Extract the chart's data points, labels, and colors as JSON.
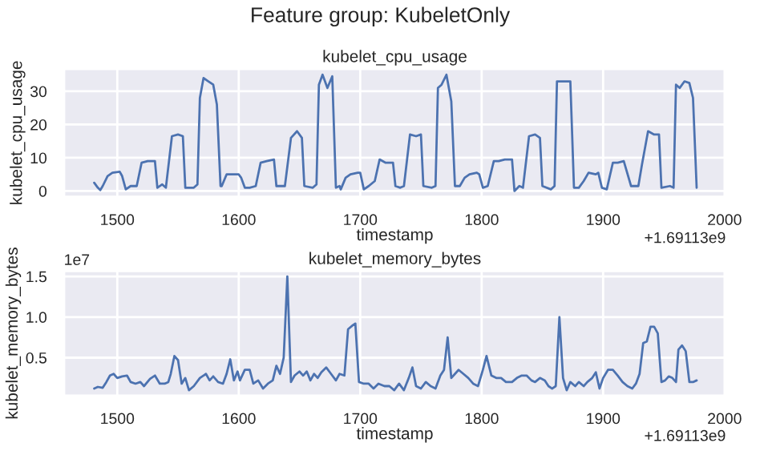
{
  "chart_data": [
    {
      "type": "line",
      "title": "Feature group: KubeletOnly",
      "subtitle": "kubelet_cpu_usage",
      "xlabel": "timestamp",
      "ylabel": "kubelet_cpu_usage",
      "annotations": [
        "+1.69113e9"
      ],
      "grid": true,
      "line_style": "solid",
      "marker": "none",
      "xlim": [
        1456,
        2001
      ],
      "xticks": [
        1500,
        1600,
        1700,
        1800,
        1900,
        2000
      ],
      "ylim": [
        -1.8,
        36.8
      ],
      "yticks": [
        0,
        10,
        20,
        30
      ],
      "series": [
        {
          "color": "#4c72b0",
          "x": [
            1481,
            1484,
            1486,
            1488,
            1492,
            1496,
            1502,
            1504,
            1507,
            1511,
            1516,
            1520,
            1525,
            1531,
            1533,
            1537,
            1540,
            1545,
            1550,
            1554,
            1556,
            1563,
            1566,
            1568,
            1571,
            1575,
            1579,
            1582,
            1585,
            1586,
            1590,
            1594,
            1600,
            1602,
            1605,
            1609,
            1614,
            1618,
            1623,
            1629,
            1631,
            1635,
            1638,
            1643,
            1648,
            1652,
            1654,
            1661,
            1664,
            1666,
            1669,
            1673,
            1677,
            1680,
            1683,
            1684,
            1688,
            1692,
            1698,
            1700,
            1703,
            1707,
            1712,
            1716,
            1721,
            1727,
            1729,
            1733,
            1736,
            1741,
            1746,
            1750,
            1752,
            1759,
            1762,
            1764,
            1767,
            1771,
            1775,
            1778,
            1781,
            1782,
            1786,
            1790,
            1796,
            1798,
            1801,
            1805,
            1810,
            1814,
            1819,
            1825,
            1827,
            1831,
            1834,
            1839,
            1844,
            1848,
            1850,
            1857,
            1860,
            1862,
            1865,
            1869,
            1873,
            1876,
            1879,
            1880,
            1884,
            1888,
            1894,
            1896,
            1899,
            1903,
            1908,
            1912,
            1917,
            1923,
            1925,
            1929,
            1932,
            1937,
            1942,
            1946,
            1948,
            1955,
            1958,
            1960,
            1963,
            1967,
            1971,
            1974,
            1977
          ],
          "values": [
            2.5,
            1,
            0.3,
            1.5,
            4.5,
            5.5,
            5.8,
            4.5,
            0.5,
            1.5,
            1.5,
            8.5,
            9,
            9,
            1,
            2,
            1,
            16.5,
            17,
            16.5,
            1,
            1,
            2,
            28,
            34,
            33,
            32,
            26,
            1.5,
            1.5,
            5,
            5,
            5,
            4,
            1,
            1,
            1.5,
            8.5,
            9,
            9.5,
            1.5,
            1.5,
            1.5,
            16,
            18,
            16,
            1.5,
            1,
            2,
            32,
            35,
            31,
            34.5,
            1,
            1.5,
            0.5,
            4,
            5,
            5.5,
            5.5,
            0.5,
            1.5,
            3,
            9.5,
            8.5,
            8.5,
            1.5,
            1,
            1.5,
            17,
            16.5,
            17,
            1.5,
            1,
            1.5,
            31,
            32,
            35,
            27,
            1.5,
            1.5,
            1.5,
            4,
            5,
            5.5,
            5,
            1,
            1.5,
            9,
            9,
            9.5,
            9.5,
            0,
            1.5,
            1,
            16.5,
            17,
            16,
            1.5,
            0.5,
            1.5,
            33,
            33,
            33,
            33,
            1,
            1,
            1,
            3,
            5.5,
            5,
            5.5,
            1,
            0.5,
            8.5,
            8.5,
            9,
            1.5,
            1.5,
            1.5,
            8,
            18,
            17,
            17,
            1,
            1.5,
            1,
            32,
            31,
            33,
            32.5,
            28,
            1
          ]
        }
      ]
    },
    {
      "type": "line",
      "title": "kubelet_memory_bytes",
      "xlabel": "timestamp",
      "ylabel": "kubelet_memory_bytes",
      "annotations": [
        "1e7",
        "+1.69113e9"
      ],
      "grid": true,
      "line_style": "solid",
      "marker": "none",
      "xlim": [
        1456,
        2001
      ],
      "xticks": [
        1500,
        1600,
        1700,
        1800,
        1900,
        2000
      ],
      "ylim": [
        0.03,
        1.57
      ],
      "yticks": [
        0.5,
        {
          "value": 1.0,
          "label": "1.0"
        },
        1.5
      ],
      "series": [
        {
          "color": "#4c72b0",
          "x": [
            1481,
            1484,
            1488,
            1491,
            1494,
            1497,
            1500,
            1504,
            1508,
            1511,
            1515,
            1519,
            1522,
            1527,
            1531,
            1535,
            1539,
            1542,
            1544,
            1547,
            1550,
            1553,
            1556,
            1559,
            1563,
            1568,
            1573,
            1576,
            1579,
            1583,
            1587,
            1590,
            1593,
            1596,
            1599,
            1601,
            1605,
            1609,
            1612,
            1616,
            1620,
            1624,
            1628,
            1631,
            1634,
            1637,
            1640,
            1643,
            1646,
            1650,
            1653,
            1656,
            1659,
            1662,
            1665,
            1668,
            1672,
            1676,
            1680,
            1683,
            1687,
            1690,
            1694,
            1696,
            1699,
            1703,
            1707,
            1711,
            1715,
            1720,
            1724,
            1728,
            1732,
            1736,
            1740,
            1743,
            1746,
            1750,
            1754,
            1758,
            1762,
            1766,
            1769,
            1772,
            1775,
            1778,
            1781,
            1785,
            1789,
            1793,
            1797,
            1801,
            1804,
            1808,
            1812,
            1816,
            1820,
            1825,
            1829,
            1833,
            1837,
            1841,
            1844,
            1848,
            1852,
            1855,
            1858,
            1861,
            1864,
            1867,
            1870,
            1873,
            1877,
            1880,
            1884,
            1887,
            1891,
            1894,
            1897,
            1900,
            1904,
            1908,
            1912,
            1916,
            1920,
            1924,
            1927,
            1930,
            1933,
            1936,
            1939,
            1942,
            1945,
            1948,
            1951,
            1954,
            1957,
            1960,
            1962,
            1965,
            1968,
            1971,
            1974,
            1977
          ],
          "values": [
            0.12,
            0.14,
            0.13,
            0.2,
            0.28,
            0.3,
            0.25,
            0.27,
            0.28,
            0.2,
            0.18,
            0.2,
            0.15,
            0.24,
            0.28,
            0.18,
            0.18,
            0.2,
            0.3,
            0.52,
            0.47,
            0.18,
            0.25,
            0.1,
            0.15,
            0.25,
            0.3,
            0.22,
            0.27,
            0.2,
            0.18,
            0.3,
            0.48,
            0.22,
            0.33,
            0.22,
            0.35,
            0.35,
            0.18,
            0.22,
            0.12,
            0.18,
            0.22,
            0.4,
            0.3,
            0.5,
            1.5,
            0.2,
            0.28,
            0.33,
            0.28,
            0.33,
            0.22,
            0.3,
            0.25,
            0.32,
            0.38,
            0.3,
            0.22,
            0.3,
            0.28,
            0.85,
            0.9,
            0.92,
            0.2,
            0.18,
            0.18,
            0.12,
            0.18,
            0.15,
            0.15,
            0.1,
            0.18,
            0.1,
            0.25,
            0.38,
            0.15,
            0.12,
            0.2,
            0.15,
            0.12,
            0.28,
            0.35,
            0.75,
            0.25,
            0.3,
            0.35,
            0.3,
            0.25,
            0.18,
            0.15,
            0.35,
            0.52,
            0.28,
            0.25,
            0.25,
            0.2,
            0.2,
            0.25,
            0.28,
            0.28,
            0.22,
            0.2,
            0.25,
            0.22,
            0.15,
            0.12,
            0.15,
            1.0,
            0.25,
            0.1,
            0.2,
            0.15,
            0.2,
            0.15,
            0.2,
            0.25,
            0.32,
            0.12,
            0.25,
            0.35,
            0.35,
            0.28,
            0.2,
            0.15,
            0.12,
            0.18,
            0.3,
            0.68,
            0.7,
            0.88,
            0.88,
            0.8,
            0.2,
            0.22,
            0.27,
            0.25,
            0.2,
            0.6,
            0.65,
            0.58,
            0.2,
            0.2,
            0.22
          ]
        }
      ]
    }
  ]
}
